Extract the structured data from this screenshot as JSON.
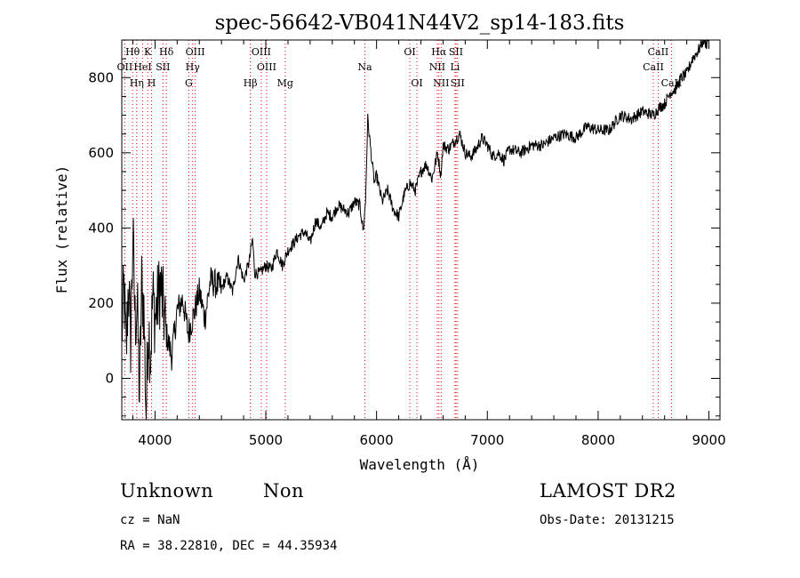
{
  "chart_data": {
    "type": "line",
    "title": "spec-56642-VB041N44V2_sp14-183.fits",
    "xlabel": "Wavelength (Å)",
    "ylabel": "Flux (relative)",
    "xlim": [
      3700,
      9100
    ],
    "ylim": [
      -110,
      900
    ],
    "xticks": [
      4000,
      5000,
      6000,
      7000,
      8000,
      9000
    ],
    "yticks": [
      0,
      200,
      400,
      600,
      800
    ],
    "xtick_labels": [
      "4000",
      "5000",
      "6000",
      "7000",
      "8000",
      "9000"
    ],
    "ytick_labels": [
      "0",
      "200",
      "400",
      "600",
      "800"
    ],
    "grid": false,
    "line_color": "#000000",
    "marker_color": "#ff0000",
    "series": [
      {
        "x": [
          3700,
          3720,
          3740,
          3760,
          3780,
          3800,
          3820,
          3840,
          3860,
          3880,
          3900,
          3920,
          3940,
          3960,
          3980,
          4000,
          4050,
          4100,
          4150,
          4200,
          4250,
          4300,
          4350,
          4400,
          4450,
          4500,
          4550,
          4600,
          4650,
          4700,
          4750,
          4800,
          4850,
          4880,
          4900,
          4950,
          5000,
          5050,
          5100,
          5150,
          5200,
          5250,
          5300,
          5350,
          5400,
          5450,
          5500,
          5550,
          5600,
          5650,
          5700,
          5750,
          5800,
          5850,
          5880,
          5900,
          5920,
          5940,
          5960,
          5980,
          6000,
          6050,
          6100,
          6150,
          6200,
          6250,
          6300,
          6350,
          6400,
          6450,
          6500,
          6550,
          6580,
          6600,
          6650,
          6700,
          6750,
          6800,
          6850,
          6900,
          6950,
          7000,
          7050,
          7100,
          7150,
          7200,
          7300,
          7400,
          7500,
          7600,
          7700,
          7800,
          7900,
          8000,
          8100,
          8200,
          8300,
          8400,
          8500,
          8550,
          8600,
          8650,
          8700,
          8750,
          8800,
          8850,
          8900,
          8950,
          8980,
          9000
        ],
        "y": [
          120,
          240,
          60,
          260,
          100,
          380,
          150,
          200,
          -50,
          250,
          180,
          -100,
          150,
          60,
          220,
          160,
          250,
          120,
          60,
          180,
          210,
          120,
          170,
          230,
          160,
          260,
          250,
          240,
          270,
          230,
          320,
          260,
          310,
          370,
          280,
          280,
          300,
          290,
          340,
          300,
          340,
          360,
          380,
          390,
          360,
          420,
          400,
          440,
          430,
          460,
          450,
          440,
          470,
          460,
          390,
          470,
          690,
          630,
          570,
          520,
          540,
          470,
          500,
          450,
          430,
          490,
          520,
          500,
          550,
          570,
          530,
          600,
          540,
          620,
          610,
          630,
          650,
          600,
          590,
          610,
          640,
          620,
          590,
          600,
          580,
          610,
          600,
          620,
          620,
          640,
          650,
          640,
          670,
          660,
          660,
          700,
          690,
          710,
          700,
          720,
          730,
          760,
          770,
          800,
          810,
          850,
          870,
          900,
          890,
          910
        ]
      }
    ],
    "line_markers": [
      {
        "label": "Hθ",
        "wave": 3798,
        "row": 1
      },
      {
        "label": "OII",
        "wave": 3727,
        "row": 2
      },
      {
        "label": "Hη",
        "wave": 3835,
        "row": 3
      },
      {
        "label": "K",
        "wave": 3934,
        "row": 1
      },
      {
        "label": "HeI",
        "wave": 3889,
        "row": 2
      },
      {
        "label": "H",
        "wave": 3969,
        "row": 3
      },
      {
        "label": "Hδ",
        "wave": 4102,
        "row": 1
      },
      {
        "label": "SII",
        "wave": 4072,
        "row": 2
      },
      {
        "label": "OIII",
        "wave": 4363,
        "row": 1
      },
      {
        "label": "Hγ",
        "wave": 4340,
        "row": 2
      },
      {
        "label": "G",
        "wave": 4305,
        "row": 3
      },
      {
        "label": "Hβ",
        "wave": 4861,
        "row": 3
      },
      {
        "label": "OIII",
        "wave": 4959,
        "row": 1
      },
      {
        "label": "OIII",
        "wave": 5007,
        "row": 2
      },
      {
        "label": "Mg",
        "wave": 5175,
        "row": 3
      },
      {
        "label": "Na",
        "wave": 5894,
        "row": 2
      },
      {
        "label": "OI",
        "wave": 6300,
        "row": 1
      },
      {
        "label": "OI",
        "wave": 6364,
        "row": 3
      },
      {
        "label": "Hα",
        "wave": 6563,
        "row": 1
      },
      {
        "label": "NII",
        "wave": 6548,
        "row": 2
      },
      {
        "label": "NII",
        "wave": 6583,
        "row": 3
      },
      {
        "label": "SII",
        "wave": 6717,
        "row": 1
      },
      {
        "label": "Li",
        "wave": 6708,
        "row": 2
      },
      {
        "label": "SII",
        "wave": 6731,
        "row": 3
      },
      {
        "label": "CaII",
        "wave": 8542,
        "row": 1
      },
      {
        "label": "CaII",
        "wave": 8498,
        "row": 2
      },
      {
        "label": "CaII",
        "wave": 8662,
        "row": 3
      }
    ]
  },
  "info": {
    "class": "Unknown",
    "subclass": "Non",
    "survey": "LAMOST DR2",
    "cz": "cz = NaN",
    "obs_date": "Obs-Date: 20131215",
    "radec": "RA =  38.22810, DEC =  44.35934"
  }
}
